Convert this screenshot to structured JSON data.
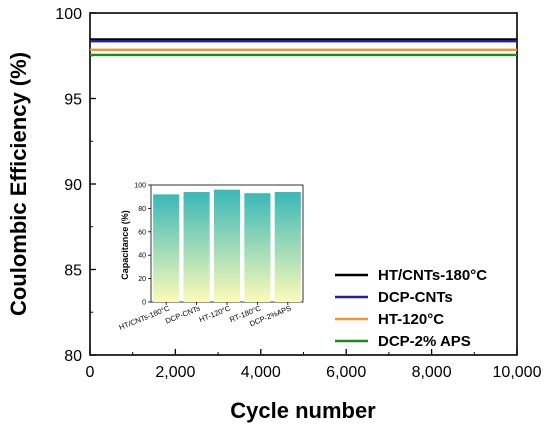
{
  "chart_data": [
    {
      "type": "line",
      "xlabel": "Cycle number",
      "ylabel": "Coulombic Efficiency (%)",
      "xlim": [
        0,
        10000
      ],
      "ylim": [
        80,
        100
      ],
      "xticks": [
        0,
        2000,
        4000,
        6000,
        8000,
        10000
      ],
      "xtick_labels": [
        "0",
        "2,000",
        "4,000",
        "6,000",
        "8,000",
        "10,000"
      ],
      "yticks": [
        80,
        85,
        90,
        95,
        100
      ],
      "ytick_labels": [
        "80",
        "85",
        "90",
        "95",
        "100"
      ],
      "grid": false,
      "legend_position": "bottom-right",
      "series": [
        {
          "name": "HT/CNTs-180°C",
          "color": "#000000",
          "x": [
            0,
            10000
          ],
          "y": [
            98.45,
            98.45
          ]
        },
        {
          "name": "DCP-CNTs",
          "color": "#1f1fa0",
          "x": [
            0,
            10000
          ],
          "y": [
            98.35,
            98.35
          ]
        },
        {
          "name": "HT-120°C",
          "color": "#f0962a",
          "x": [
            0,
            10000
          ],
          "y": [
            97.85,
            97.85
          ]
        },
        {
          "name": "DCP-2% APS",
          "color": "#1e8a1e",
          "x": [
            0,
            10000
          ],
          "y": [
            97.55,
            97.55
          ]
        }
      ]
    },
    {
      "type": "bar",
      "ylabel": "Capacitance (%)",
      "ylim": [
        0,
        100
      ],
      "yticks": [
        0,
        20,
        40,
        60,
        80,
        100
      ],
      "ytick_labels": [
        "0",
        "20",
        "40",
        "60",
        "80",
        "100"
      ],
      "categories": [
        "HT/CNTs-180°C",
        "DCP-CNTs",
        "HT-120°C",
        "RT-180°C",
        "DCP-2%APS"
      ],
      "values": [
        92,
        94,
        96,
        93,
        94
      ],
      "gradient_colors": [
        "#3ab8b8",
        "#fdfbb8"
      ]
    }
  ]
}
